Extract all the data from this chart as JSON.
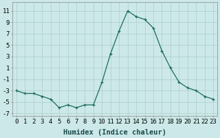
{
  "x": [
    0,
    1,
    2,
    3,
    4,
    5,
    6,
    7,
    8,
    9,
    10,
    11,
    12,
    13,
    14,
    15,
    16,
    17,
    18,
    19,
    20,
    21,
    22,
    23
  ],
  "y": [
    -3.0,
    -3.5,
    -3.5,
    -4.0,
    -4.5,
    -6.0,
    -5.5,
    -6.0,
    -5.5,
    -5.5,
    -1.5,
    3.5,
    7.5,
    11.0,
    10.0,
    9.5,
    8.0,
    4.0,
    1.0,
    -1.5,
    -2.5,
    -3.0,
    -4.0,
    -4.5
  ],
  "line_color": "#1a6b5a",
  "bg_color": "#cce8e8",
  "grid_color": "#aacece",
  "xlabel": "Humidex (Indice chaleur)",
  "ylim": [
    -7.5,
    12.5
  ],
  "yticks": [
    -7,
    -5,
    -3,
    -1,
    1,
    3,
    5,
    7,
    9,
    11
  ],
  "xticks": [
    0,
    1,
    2,
    3,
    4,
    5,
    6,
    7,
    8,
    9,
    10,
    11,
    12,
    13,
    14,
    15,
    16,
    17,
    18,
    19,
    20,
    21,
    22,
    23
  ],
  "tick_fontsize": 6.5,
  "xlabel_fontsize": 7.5
}
